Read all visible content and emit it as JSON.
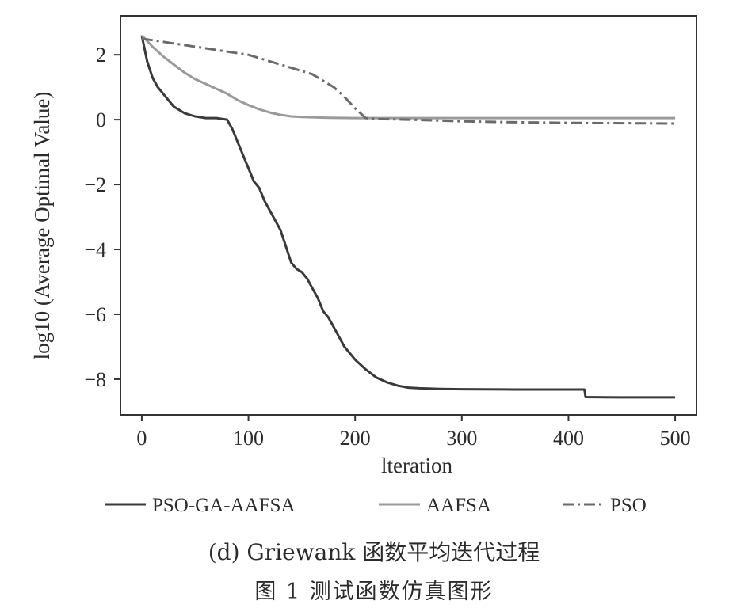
{
  "chart_data": {
    "type": "line",
    "xlabel": "lteration",
    "ylabel": "log10 (Average Optimal Value)",
    "xlim": [
      -20,
      520
    ],
    "ylim": [
      -9.1,
      3.2
    ],
    "xticks": [
      "0",
      "100",
      "200",
      "300",
      "400",
      "500"
    ],
    "xtick_values": [
      0,
      100,
      200,
      300,
      400,
      500
    ],
    "yticks": [
      "2",
      "0",
      "−2",
      "−4",
      "−6",
      "−8"
    ],
    "ytick_values": [
      2,
      0,
      -2,
      -4,
      -6,
      -8
    ],
    "grid": false,
    "legend_position": "bottom",
    "series": [
      {
        "name": "PSO-GA-AAFSA",
        "color": "#3a3a3a",
        "dash": "solid",
        "x": [
          0,
          5,
          10,
          15,
          20,
          25,
          30,
          40,
          50,
          60,
          70,
          80,
          85,
          90,
          95,
          100,
          105,
          110,
          115,
          120,
          125,
          130,
          135,
          140,
          145,
          150,
          155,
          160,
          165,
          170,
          175,
          180,
          185,
          190,
          195,
          200,
          210,
          220,
          230,
          240,
          250,
          260,
          280,
          300,
          350,
          400,
          415,
          416,
          450,
          500
        ],
        "y": [
          2.6,
          1.8,
          1.3,
          1.0,
          0.8,
          0.6,
          0.4,
          0.2,
          0.1,
          0.05,
          0.05,
          0.0,
          -0.3,
          -0.7,
          -1.1,
          -1.5,
          -1.9,
          -2.1,
          -2.5,
          -2.8,
          -3.1,
          -3.4,
          -3.9,
          -4.4,
          -4.6,
          -4.7,
          -4.9,
          -5.2,
          -5.5,
          -5.9,
          -6.1,
          -6.4,
          -6.7,
          -7.0,
          -7.2,
          -7.4,
          -7.7,
          -7.95,
          -8.1,
          -8.2,
          -8.26,
          -8.28,
          -8.3,
          -8.31,
          -8.32,
          -8.32,
          -8.32,
          -8.55,
          -8.56,
          -8.56
        ]
      },
      {
        "name": "AAFSA",
        "color": "#9a9a9a",
        "dash": "solid",
        "x": [
          0,
          10,
          20,
          30,
          40,
          50,
          60,
          70,
          80,
          90,
          100,
          110,
          120,
          130,
          140,
          150,
          175,
          200,
          250,
          300,
          400,
          500
        ],
        "y": [
          2.6,
          2.25,
          1.95,
          1.7,
          1.45,
          1.25,
          1.1,
          0.95,
          0.8,
          0.6,
          0.45,
          0.32,
          0.22,
          0.15,
          0.1,
          0.08,
          0.06,
          0.05,
          0.05,
          0.05,
          0.05,
          0.05
        ]
      },
      {
        "name": "PSO",
        "color": "#6a6a6a",
        "dash": "dashdot",
        "x": [
          0,
          20,
          40,
          60,
          80,
          100,
          120,
          140,
          150,
          160,
          170,
          180,
          190,
          200,
          210,
          220,
          250,
          300,
          350,
          400,
          500
        ],
        "y": [
          2.5,
          2.4,
          2.3,
          2.2,
          2.1,
          2.0,
          1.8,
          1.6,
          1.5,
          1.4,
          1.2,
          1.0,
          0.7,
          0.35,
          0.05,
          0.02,
          0.0,
          -0.05,
          -0.08,
          -0.1,
          -0.12
        ]
      }
    ]
  },
  "captions": {
    "sub": "(d) Griewank 函数平均迭代过程",
    "figure": "图 1  测试函数仿真图形"
  }
}
